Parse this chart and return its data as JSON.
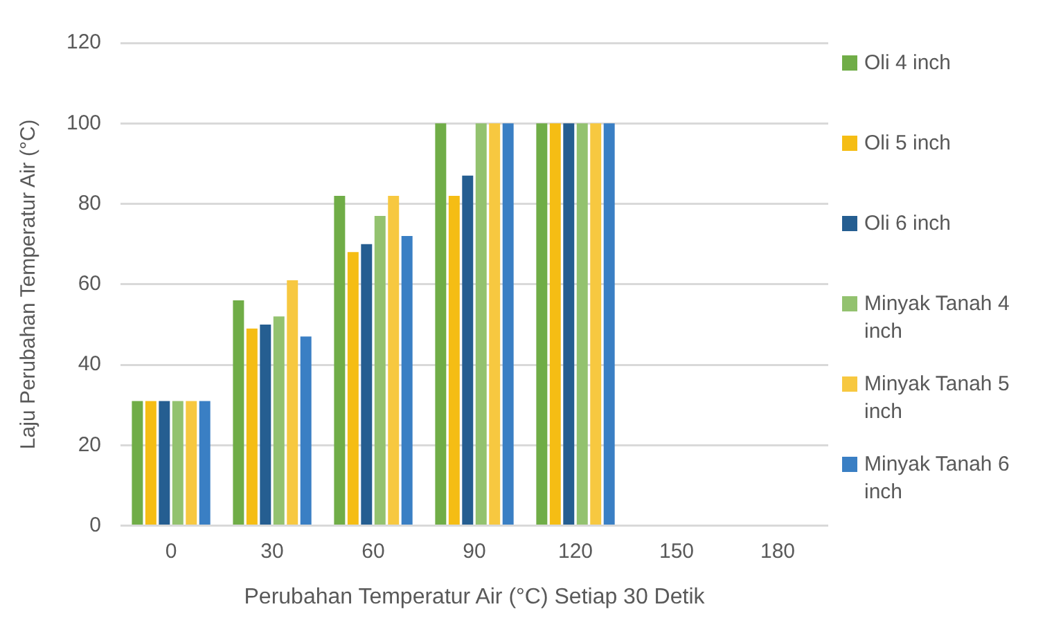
{
  "chart_data": {
    "type": "bar",
    "xlabel": "Perubahan Temperatur Air (°C) Setiap 30 Detik",
    "ylabel": "Laju Perubahan Temperatur Air (°C)",
    "categories": [
      "0",
      "30",
      "60",
      "90",
      "120",
      "150",
      "180"
    ],
    "series": [
      {
        "name": "Oli 4 inch",
        "color": "#70ad47",
        "values": [
          31,
          56,
          82,
          100,
          100,
          null,
          null
        ]
      },
      {
        "name": "Oli 5 inch",
        "color": "#f5bd14",
        "values": [
          31,
          49,
          68,
          82,
          100,
          null,
          null
        ]
      },
      {
        "name": "Oli 6 inch",
        "color": "#255e91",
        "values": [
          31,
          50,
          70,
          87,
          100,
          null,
          null
        ]
      },
      {
        "name": "Minyak Tanah 4 inch",
        "color": "#93c26f",
        "values": [
          31,
          52,
          77,
          100,
          100,
          null,
          null
        ]
      },
      {
        "name": "Minyak Tanah 5 inch",
        "color": "#f7c840",
        "values": [
          31,
          61,
          82,
          100,
          100,
          null,
          null
        ]
      },
      {
        "name": "Minyak Tanah 6 inch",
        "color": "#3a7fc4",
        "values": [
          31,
          47,
          72,
          100,
          100,
          null,
          null
        ]
      }
    ],
    "ylim": [
      0,
      120
    ],
    "yticks": [
      0,
      20,
      40,
      60,
      80,
      100,
      120
    ],
    "grid": "y",
    "legend": "right"
  }
}
